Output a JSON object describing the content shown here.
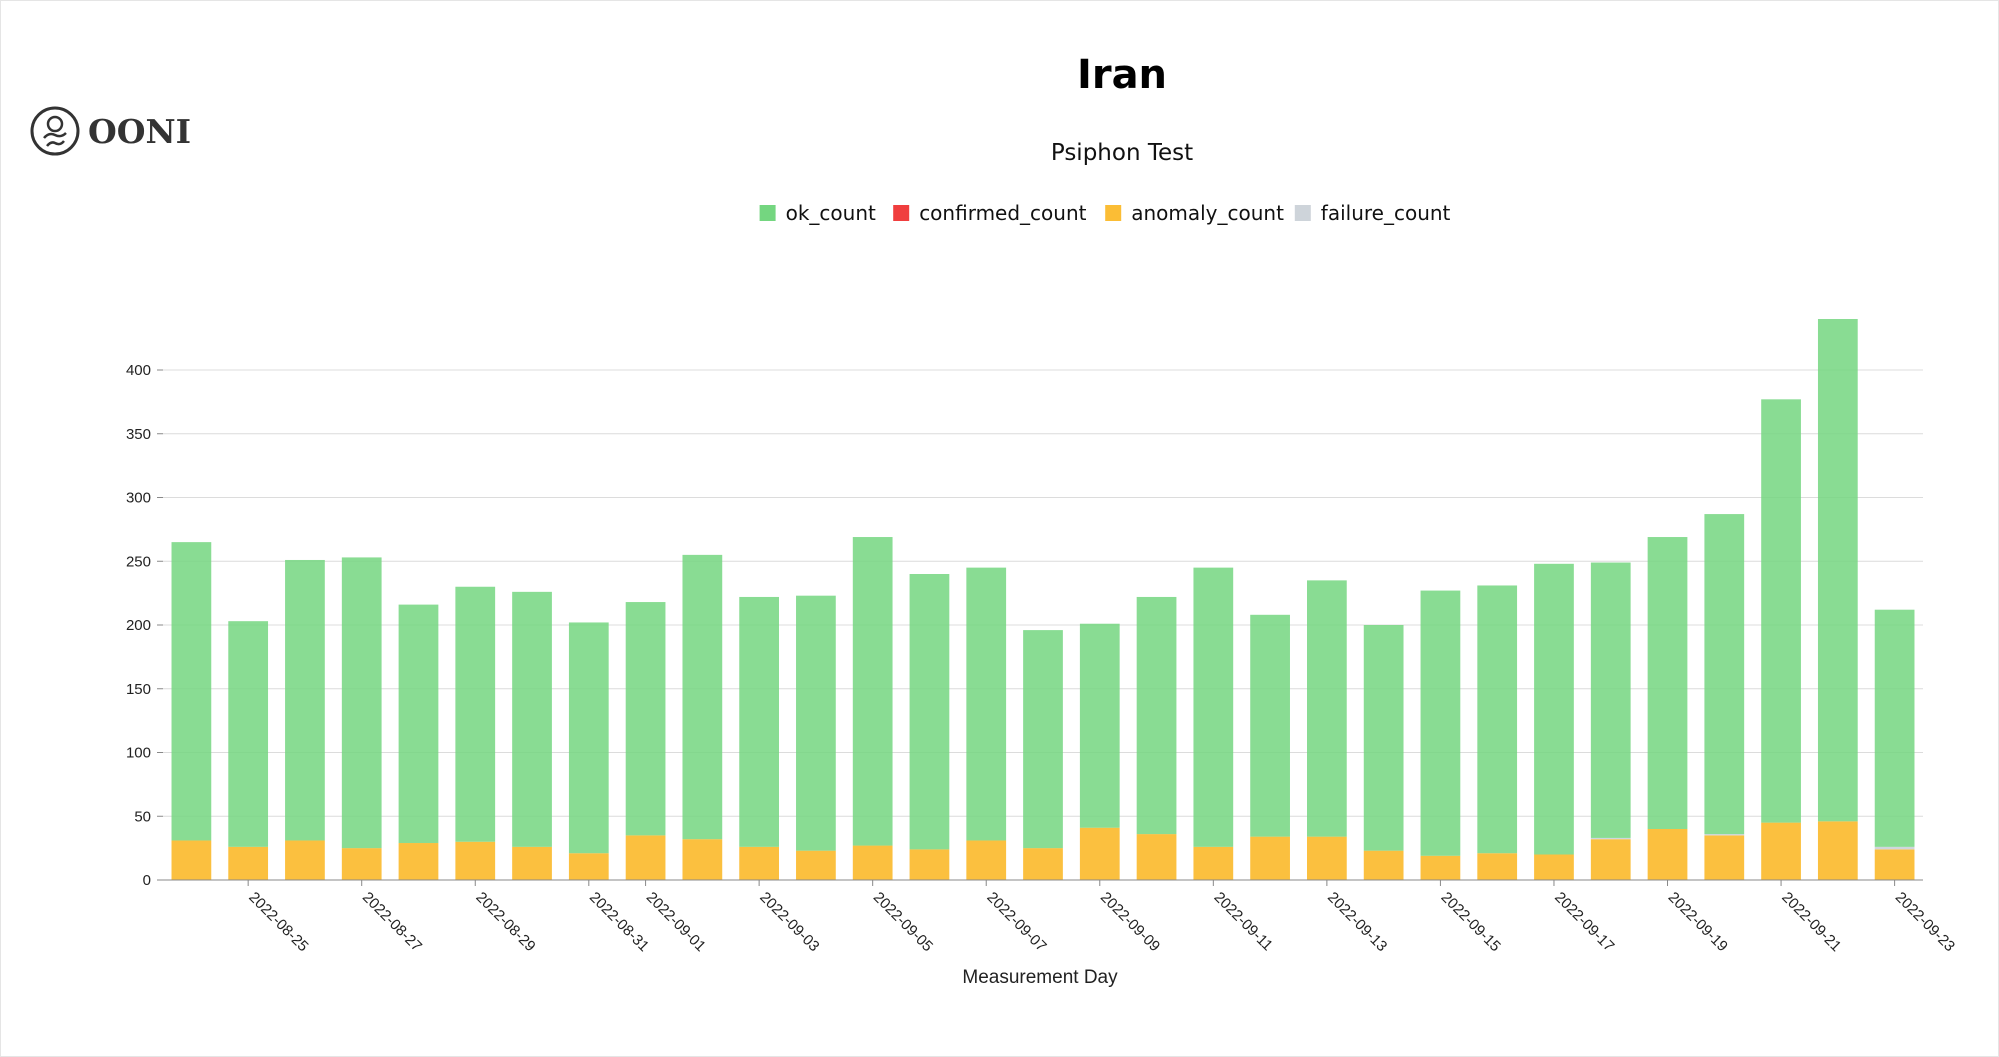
{
  "logo_text": "OONI",
  "chart_data": {
    "type": "stacked_bar",
    "title": "Iran",
    "subtitle": "Psiphon Test",
    "x_label": "Measurement Day",
    "categories": [
      null,
      "2022-08-25",
      null,
      "2022-08-27",
      null,
      "2022-08-29",
      null,
      "2022-08-31",
      "2022-09-01",
      null,
      "2022-09-03",
      null,
      "2022-09-05",
      null,
      "2022-09-07",
      null,
      "2022-09-09",
      null,
      "2022-09-11",
      null,
      "2022-09-13",
      null,
      "2022-09-15",
      null,
      "2022-09-17",
      null,
      "2022-09-19",
      null,
      "2022-09-21",
      null,
      "2022-09-23"
    ],
    "series": [
      {
        "name": "ok_count",
        "color": "#74d680",
        "values": [
          234,
          177,
          220,
          228,
          187,
          200,
          200,
          181,
          183,
          223,
          196,
          200,
          242,
          216,
          214,
          171,
          160,
          186,
          219,
          174,
          201,
          177,
          208,
          210,
          228,
          216,
          229,
          251,
          332,
          394,
          186
        ]
      },
      {
        "name": "confirmed_count",
        "color": "#f03e3e",
        "values": [
          0,
          0,
          0,
          0,
          0,
          0,
          0,
          0,
          0,
          0,
          0,
          0,
          0,
          0,
          0,
          0,
          0,
          0,
          0,
          0,
          0,
          0,
          0,
          0,
          0,
          0,
          0,
          0,
          0,
          0,
          0
        ]
      },
      {
        "name": "anomaly_count",
        "color": "#fbbd35",
        "values": [
          31,
          26,
          31,
          25,
          29,
          30,
          26,
          21,
          35,
          32,
          26,
          23,
          27,
          24,
          31,
          25,
          41,
          36,
          26,
          34,
          34,
          23,
          19,
          21,
          20,
          32,
          40,
          35,
          45,
          46,
          24
        ]
      },
      {
        "name": "failure_count",
        "color": "#ced4da",
        "values": [
          0,
          0,
          0,
          0,
          0,
          0,
          0,
          0,
          0,
          0,
          0,
          0,
          0,
          0,
          0,
          0,
          0,
          0,
          0,
          0,
          0,
          0,
          0,
          0,
          0,
          1,
          0,
          1,
          0,
          0,
          2
        ]
      }
    ],
    "ylim": [
      0,
      450
    ],
    "yticks": [
      0,
      50,
      100,
      150,
      200,
      250,
      300,
      350,
      400
    ],
    "grid": true
  }
}
